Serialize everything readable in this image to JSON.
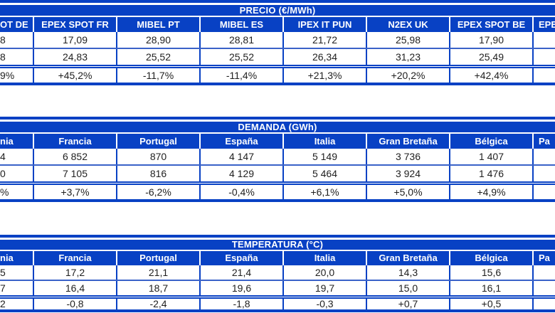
{
  "accent_color": "#0841c4",
  "text_color": "#1f1f1f",
  "tables": [
    {
      "title": "PRECIO (€/MWh)",
      "columns": [
        "OT DE",
        "EPEX SPOT FR",
        "MIBEL PT",
        "MIBEL ES",
        "IPEX IT PUN",
        "N2EX UK",
        "EPEX SPOT BE",
        "EPE"
      ],
      "rows": [
        [
          "8",
          "17,09",
          "28,90",
          "28,81",
          "21,72",
          "25,98",
          "17,90",
          ""
        ],
        [
          "8",
          "24,83",
          "25,52",
          "25,52",
          "26,34",
          "31,23",
          "25,49",
          ""
        ]
      ],
      "delta_row": [
        "9%",
        "+45,2%",
        "-11,7%",
        "-11,4%",
        "+21,3%",
        "+20,2%",
        "+42,4%",
        ""
      ]
    },
    {
      "title": "DEMANDA (GWh)",
      "columns": [
        "nia",
        "Francia",
        "Portugal",
        "España",
        "Italia",
        "Gran Bretaña",
        "Bélgica",
        "Pa"
      ],
      "rows": [
        [
          "4",
          "6 852",
          "870",
          "4 147",
          "5 149",
          "3 736",
          "1 407",
          ""
        ],
        [
          "0",
          "7 105",
          "816",
          "4 129",
          "5 464",
          "3 924",
          "1 476",
          ""
        ]
      ],
      "delta_row": [
        "%",
        "+3,7%",
        "-6,2%",
        "-0,4%",
        "+6,1%",
        "+5,0%",
        "+4,9%",
        ""
      ]
    },
    {
      "title": "TEMPERATURA (°C)",
      "columns": [
        "nia",
        "Francia",
        "Portugal",
        "España",
        "Italia",
        "Gran Bretaña",
        "Bélgica",
        "Pa"
      ],
      "rows": [
        [
          "5",
          "17,2",
          "21,1",
          "21,4",
          "20,0",
          "14,3",
          "15,6",
          ""
        ],
        [
          "7",
          "16,4",
          "18,7",
          "19,6",
          "19,7",
          "15,0",
          "16,1",
          ""
        ]
      ],
      "delta_row": [
        "2",
        "-0,8",
        "-2,4",
        "-1,8",
        "-0,3",
        "+0,7",
        "+0,5",
        ""
      ]
    }
  ]
}
